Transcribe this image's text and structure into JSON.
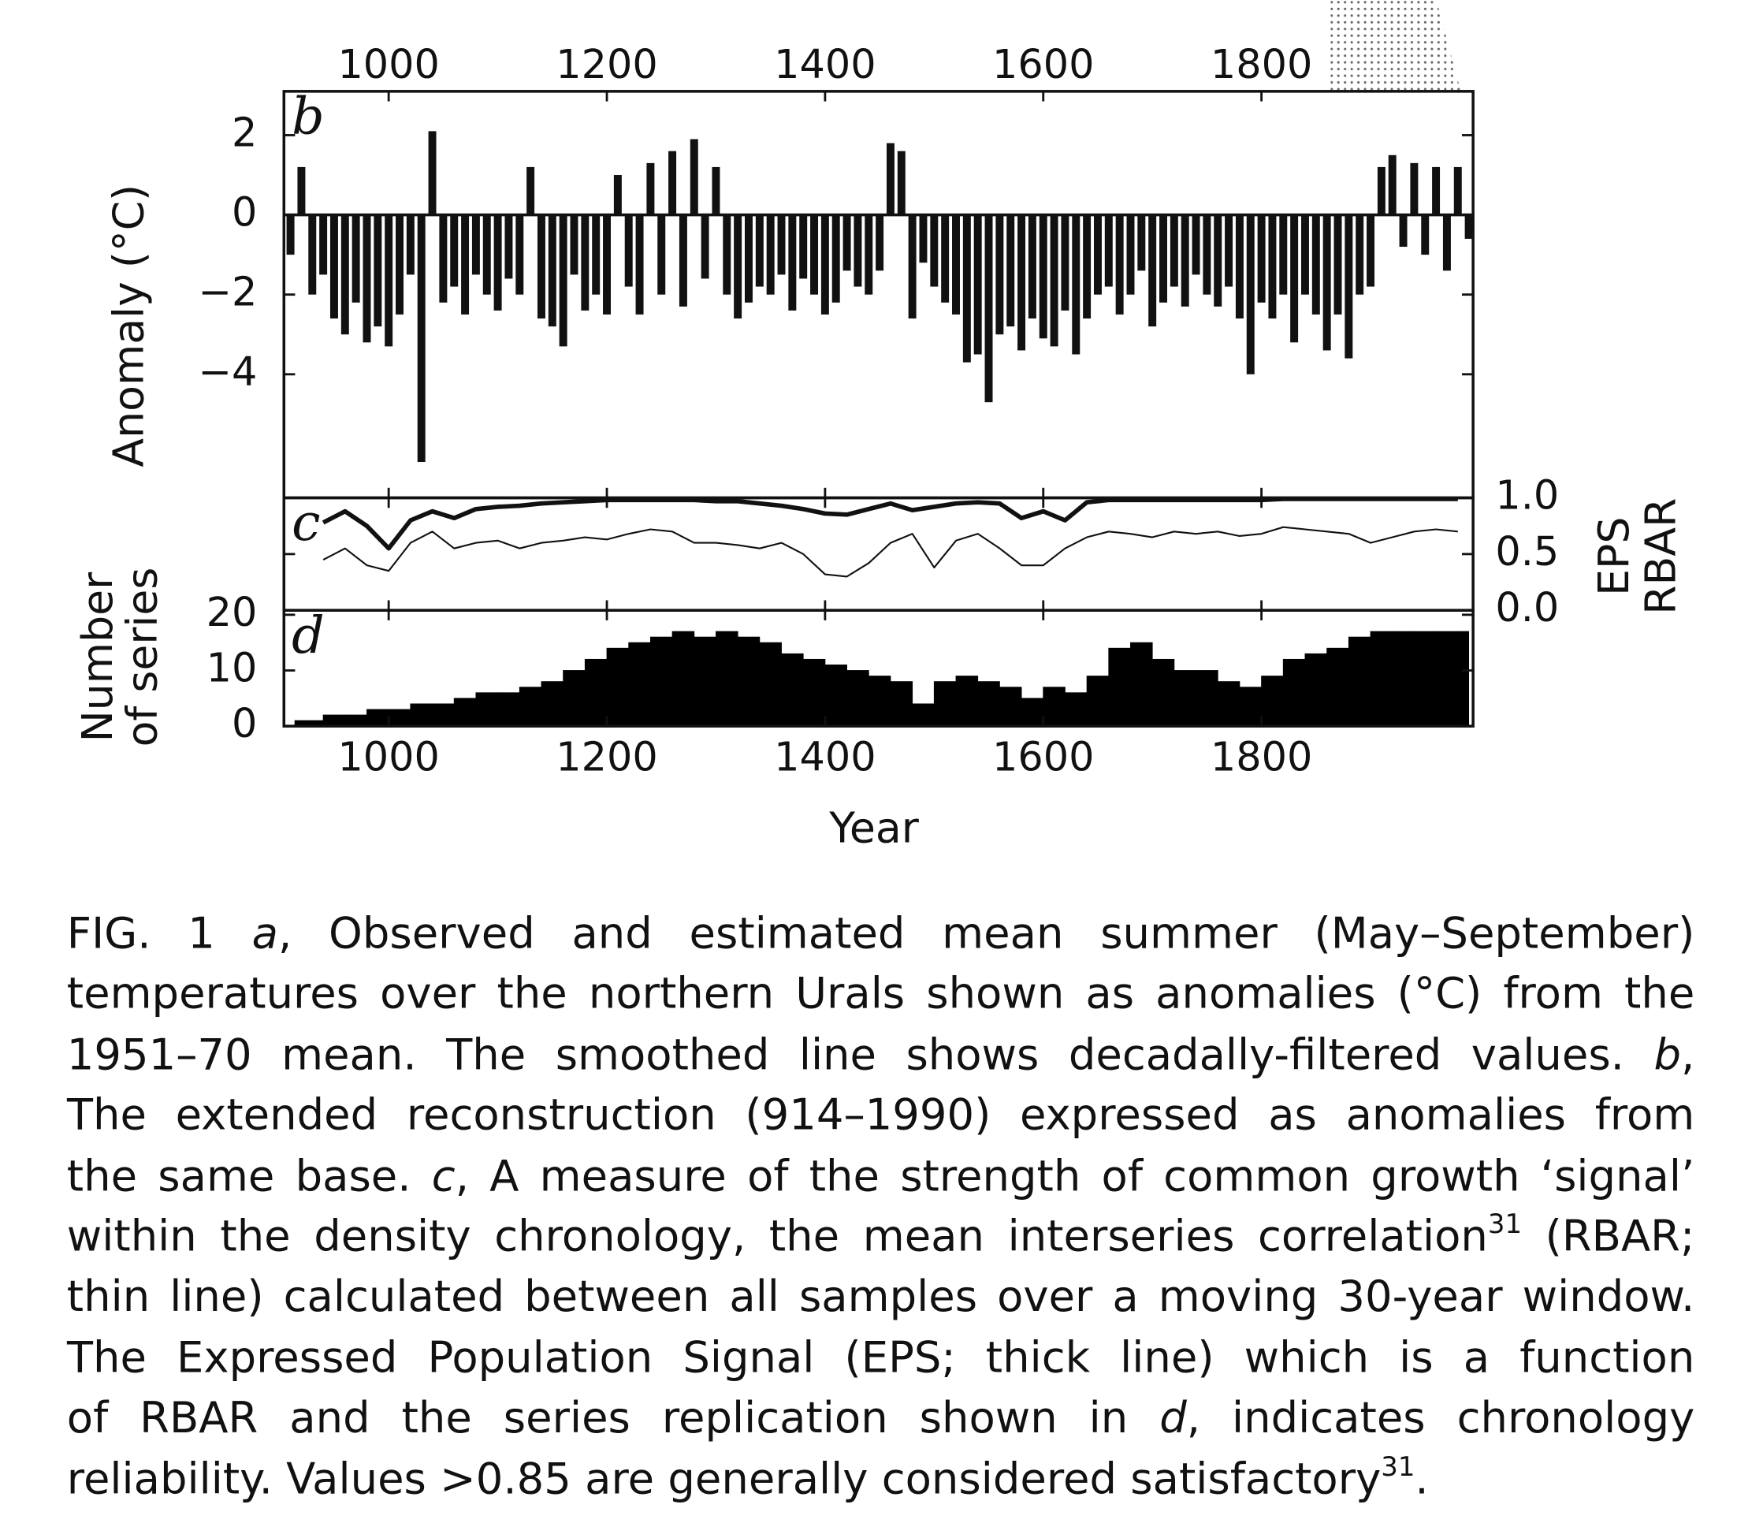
{
  "chart_data": [
    {
      "type": "bar",
      "panel_label": "b",
      "ylabel": "Anomaly (°C)",
      "x": [
        910,
        920,
        930,
        940,
        950,
        960,
        970,
        980,
        990,
        1000,
        1010,
        1020,
        1030,
        1040,
        1050,
        1060,
        1070,
        1080,
        1090,
        1100,
        1110,
        1120,
        1130,
        1140,
        1150,
        1160,
        1170,
        1180,
        1190,
        1200,
        1210,
        1220,
        1230,
        1240,
        1250,
        1260,
        1270,
        1280,
        1290,
        1300,
        1310,
        1320,
        1330,
        1340,
        1350,
        1360,
        1370,
        1380,
        1390,
        1400,
        1410,
        1420,
        1430,
        1440,
        1450,
        1460,
        1470,
        1480,
        1490,
        1500,
        1510,
        1520,
        1530,
        1540,
        1550,
        1560,
        1570,
        1580,
        1590,
        1600,
        1610,
        1620,
        1630,
        1640,
        1650,
        1660,
        1670,
        1680,
        1690,
        1700,
        1710,
        1720,
        1730,
        1740,
        1750,
        1760,
        1770,
        1780,
        1790,
        1800,
        1810,
        1820,
        1830,
        1840,
        1850,
        1860,
        1870,
        1880,
        1890,
        1900,
        1910,
        1920,
        1930,
        1940,
        1950,
        1960,
        1970,
        1980,
        1990
      ],
      "values": [
        -1.0,
        1.2,
        -2.0,
        -1.5,
        -2.6,
        -3.0,
        -2.2,
        -3.2,
        -2.8,
        -3.3,
        -2.5,
        -1.5,
        -6.2,
        2.1,
        -2.2,
        -1.8,
        -2.5,
        -1.5,
        -2.0,
        -2.4,
        -1.6,
        -2.0,
        1.2,
        -2.6,
        -2.8,
        -3.3,
        -1.5,
        -2.4,
        -2.0,
        -2.5,
        1.0,
        -1.8,
        -2.5,
        1.3,
        -2.0,
        1.6,
        -2.3,
        1.9,
        -1.6,
        1.2,
        -2.0,
        -2.6,
        -2.2,
        -1.8,
        -2.0,
        -1.5,
        -2.4,
        -1.6,
        -2.0,
        -2.5,
        -2.2,
        -1.4,
        -1.8,
        -2.0,
        -1.4,
        1.8,
        1.6,
        -2.6,
        -1.2,
        -1.8,
        -2.2,
        -2.5,
        -3.7,
        -3.5,
        -4.7,
        -3.0,
        -2.8,
        -3.4,
        -2.6,
        -3.1,
        -3.3,
        -2.4,
        -3.5,
        -2.6,
        -2.0,
        -1.8,
        -2.5,
        -2.0,
        -1.4,
        -2.8,
        -2.2,
        -1.8,
        -2.3,
        -1.5,
        -2.0,
        -2.3,
        -1.8,
        -2.6,
        -4.0,
        -2.2,
        -2.6,
        -2.0,
        -3.2,
        -2.0,
        -2.5,
        -3.4,
        -2.5,
        -3.6,
        -2.0,
        -1.8,
        1.2,
        1.5,
        -0.8,
        1.3,
        -1.0,
        1.2,
        -1.4,
        1.2,
        -0.6
      ],
      "color": "#111111",
      "xlim": [
        904,
        1994
      ],
      "xticks": [
        1000,
        1200,
        1400,
        1600,
        1800
      ],
      "xtick_labels": "top",
      "ylim": [
        -7.1,
        3.1
      ],
      "yticks": [
        2,
        0,
        {
          "value": -2,
          "label": "−2"
        },
        {
          "value": -4,
          "label": "−4"
        }
      ],
      "yaxis_side": "left"
    },
    {
      "type": "line",
      "panel_label": "c",
      "x": [
        940,
        960,
        980,
        1000,
        1020,
        1040,
        1060,
        1080,
        1100,
        1120,
        1140,
        1160,
        1180,
        1200,
        1220,
        1240,
        1260,
        1280,
        1300,
        1320,
        1340,
        1360,
        1380,
        1400,
        1420,
        1440,
        1460,
        1480,
        1500,
        1520,
        1540,
        1560,
        1580,
        1600,
        1620,
        1640,
        1660,
        1680,
        1700,
        1720,
        1740,
        1760,
        1780,
        1800,
        1820,
        1840,
        1860,
        1880,
        1900,
        1920,
        1940,
        1960,
        1980
      ],
      "series": [
        {
          "name": "EPS",
          "color": "#111111",
          "width": 4,
          "values": [
            0.78,
            0.88,
            0.75,
            0.55,
            0.8,
            0.88,
            0.82,
            0.9,
            0.92,
            0.93,
            0.95,
            0.96,
            0.97,
            0.98,
            0.98,
            0.98,
            0.98,
            0.98,
            0.97,
            0.97,
            0.95,
            0.93,
            0.9,
            0.86,
            0.85,
            0.9,
            0.95,
            0.89,
            0.92,
            0.95,
            0.96,
            0.95,
            0.82,
            0.88,
            0.8,
            0.96,
            0.98,
            0.98,
            0.98,
            0.98,
            0.98,
            0.98,
            0.98,
            0.98,
            0.99,
            0.99,
            0.99,
            0.99,
            0.99,
            0.99,
            0.99,
            0.99,
            0.99
          ]
        },
        {
          "name": "RBAR",
          "color": "#111111",
          "width": 1.5,
          "values": [
            0.45,
            0.55,
            0.4,
            0.35,
            0.6,
            0.7,
            0.55,
            0.6,
            0.62,
            0.55,
            0.6,
            0.62,
            0.65,
            0.63,
            0.68,
            0.72,
            0.7,
            0.6,
            0.6,
            0.58,
            0.55,
            0.6,
            0.5,
            0.32,
            0.3,
            0.42,
            0.6,
            0.68,
            0.38,
            0.62,
            0.68,
            0.55,
            0.4,
            0.4,
            0.55,
            0.65,
            0.7,
            0.68,
            0.65,
            0.7,
            0.68,
            0.7,
            0.66,
            0.68,
            0.74,
            0.72,
            0.7,
            0.68,
            0.6,
            0.65,
            0.7,
            0.72,
            0.7
          ]
        }
      ],
      "xlim": [
        904,
        1994
      ],
      "xticks": [
        1000,
        1200,
        1400,
        1600,
        1800
      ],
      "xtick_labels": "none",
      "ylim": [
        0,
        1
      ],
      "yticks": [
        {
          "value": 1,
          "label": "1.0"
        },
        0.5,
        {
          "value": 0,
          "label": "0.0"
        }
      ],
      "yaxis_side": "right"
    },
    {
      "type": "histogram",
      "panel_label": "d",
      "ylabel": [
        "Number",
        "of series"
      ],
      "xlabel": "Year",
      "bins": [
        914,
        940,
        960,
        980,
        1000,
        1020,
        1040,
        1060,
        1080,
        1100,
        1120,
        1140,
        1160,
        1180,
        1200,
        1220,
        1240,
        1260,
        1280,
        1300,
        1320,
        1340,
        1360,
        1380,
        1400,
        1420,
        1440,
        1460,
        1480,
        1500,
        1520,
        1540,
        1560,
        1580,
        1600,
        1620,
        1640,
        1660,
        1680,
        1700,
        1720,
        1740,
        1760,
        1780,
        1800,
        1820,
        1840,
        1860,
        1880,
        1900,
        1920,
        1940,
        1960,
        1980,
        1990
      ],
      "counts": [
        1,
        2,
        2,
        3,
        3,
        4,
        4,
        5,
        6,
        6,
        7,
        8,
        10,
        12,
        14,
        15,
        16,
        17,
        16,
        17,
        16,
        15,
        13,
        12,
        11,
        10,
        9,
        8,
        4,
        8,
        9,
        8,
        7,
        5,
        7,
        6,
        9,
        14,
        15,
        12,
        10,
        10,
        8,
        7,
        9,
        12,
        13,
        14,
        16,
        17,
        17,
        17,
        17,
        17
      ],
      "color": "#000000",
      "xlim": [
        904,
        1994
      ],
      "xticks": [
        1000,
        1200,
        1400,
        1600,
        1800
      ],
      "xtick_labels": "bottom",
      "ylim": [
        0,
        20.8
      ],
      "yticks": [
        20,
        10,
        0
      ],
      "yaxis_side": "left"
    }
  ],
  "caption": {
    "lines": [
      [
        {
          "text": "FIG. 1 "
        },
        {
          "text": "a",
          "style": "italic"
        },
        {
          "text": ", Observed and estimated mean summer (May–September)"
        }
      ],
      [
        {
          "text": "temperatures over the northern Urals shown as anomalies (°C) from the"
        }
      ],
      [
        {
          "text": "1951–70 mean. The smoothed line shows decadally-filtered values. "
        },
        {
          "text": "b",
          "style": "italic"
        },
        {
          "text": ","
        }
      ],
      [
        {
          "text": "The extended reconstruction (914–1990) expressed as anomalies from"
        }
      ],
      [
        {
          "text": "the same base. "
        },
        {
          "text": "c",
          "style": "italic"
        },
        {
          "text": ", A measure of the strength of common growth ‘signal’"
        }
      ],
      [
        {
          "text": "within the density chronology, the mean interseries correlation"
        },
        {
          "text": "31",
          "style": "sup"
        },
        {
          "text": " (RBAR;"
        }
      ],
      [
        {
          "text": "thin line) calculated between all samples over a moving 30-year window."
        }
      ],
      [
        {
          "text": "The Expressed Population Signal (EPS; thick line) which is a function"
        }
      ],
      [
        {
          "text": "of RBAR and the series replication shown in "
        },
        {
          "text": "d",
          "style": "italic"
        },
        {
          "text": ", indicates chronology"
        }
      ],
      [
        {
          "text": "reliability. Values >0.85 are generally considered satisfactory"
        },
        {
          "text": "31",
          "style": "sup"
        },
        {
          "text": "."
        }
      ]
    ]
  }
}
